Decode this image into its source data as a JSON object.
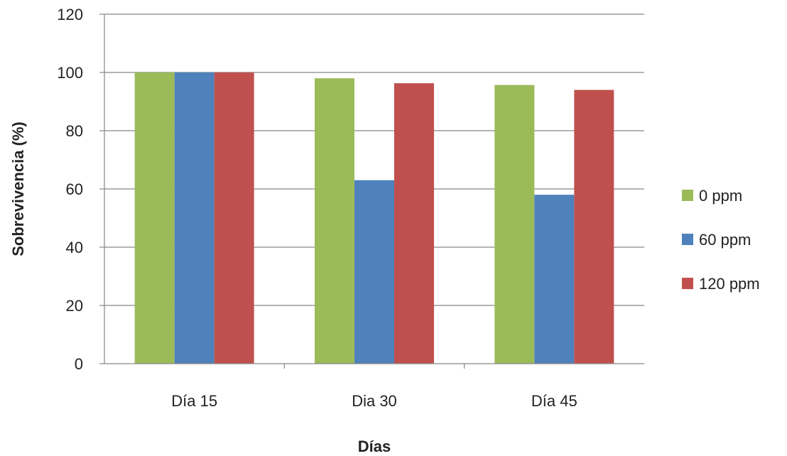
{
  "chart_data": {
    "type": "bar",
    "categories": [
      "Día 15",
      "Dia 30",
      "Día 45"
    ],
    "series": [
      {
        "name": "0 ppm",
        "color": "#9BBB59",
        "values": [
          100,
          98,
          95.7
        ]
      },
      {
        "name": "60 ppm",
        "color": "#4F81BD",
        "values": [
          100,
          63,
          58
        ]
      },
      {
        "name": "120 ppm",
        "color": "#C0504D",
        "values": [
          100,
          96.3,
          94
        ]
      }
    ],
    "title": "",
    "xlabel": "Días",
    "ylabel": "Sobrevivencia (%)",
    "ylim": [
      0,
      120
    ],
    "yticks": [
      0,
      20,
      40,
      60,
      80,
      100,
      120
    ],
    "grid": true,
    "legend": "right"
  }
}
